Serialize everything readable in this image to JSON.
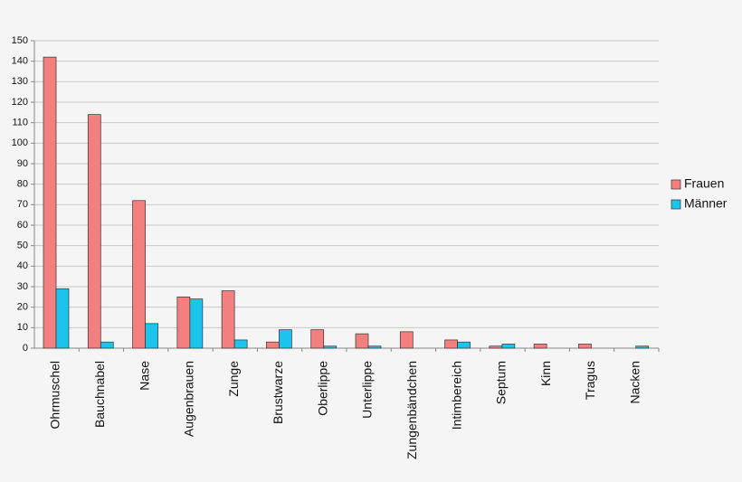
{
  "chart_data": {
    "type": "bar",
    "categories": [
      "Ohrmuschel",
      "Bauchnabel",
      "Nase",
      "Augenbrauen",
      "Zunge",
      "Brustwarze",
      "Oberlippe",
      "Unterlippe",
      "Zungenbändchen",
      "Intimbereich",
      "Septum",
      "Kinn",
      "Tragus",
      "Nacken"
    ],
    "series": [
      {
        "name": "Frauen",
        "color": "#f47f7f",
        "values": [
          142,
          114,
          72,
          25,
          28,
          3,
          9,
          7,
          8,
          4,
          1,
          2,
          2,
          0
        ]
      },
      {
        "name": "Männer",
        "color": "#1cc3ec",
        "values": [
          29,
          3,
          12,
          24,
          4,
          9,
          1,
          1,
          0,
          3,
          2,
          0,
          0,
          1
        ]
      }
    ],
    "ylim": [
      0,
      150
    ],
    "yticks": [
      0,
      10,
      20,
      30,
      40,
      50,
      60,
      70,
      80,
      90,
      100,
      110,
      120,
      130,
      140,
      150
    ],
    "grid": true,
    "legend": "right"
  }
}
